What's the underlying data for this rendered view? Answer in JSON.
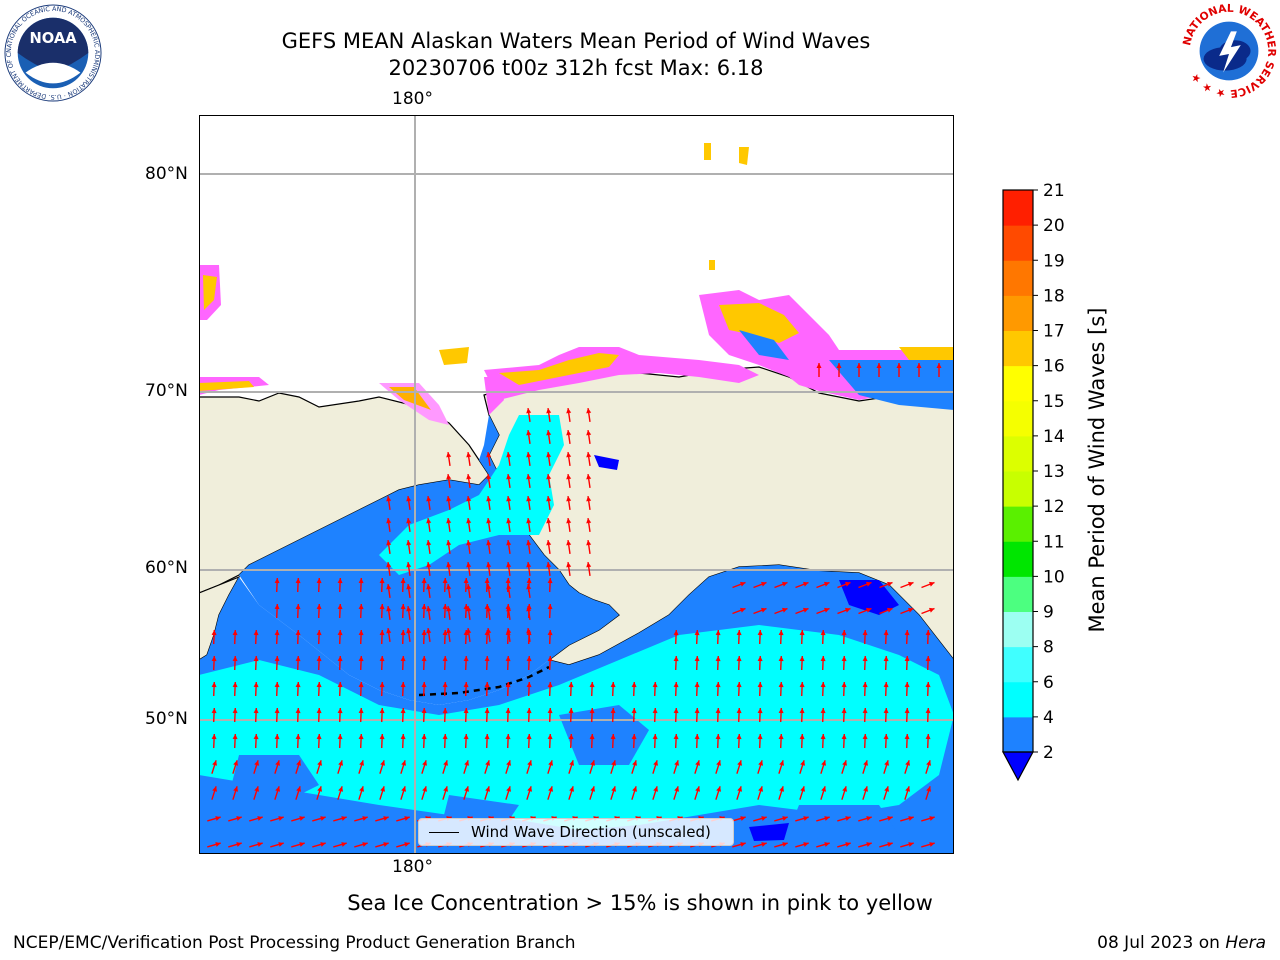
{
  "title": {
    "line1": "GEFS MEAN Alaskan Waters Mean Period of Wind Waves",
    "line2": "20230706 t00z 312h fcst   Max: 6.18"
  },
  "axes": {
    "lon_label": "180°",
    "lat_labels": [
      "80°N",
      "70°N",
      "60°N",
      "50°N"
    ]
  },
  "legend": {
    "label": "Wind Wave Direction (unscaled)"
  },
  "colorbar": {
    "label": "Mean Period of Wind Waves [s]",
    "ticks": [
      "2",
      "4",
      "6",
      "8",
      "9",
      "10",
      "11",
      "12",
      "13",
      "14",
      "15",
      "16",
      "17",
      "18",
      "19",
      "20",
      "21"
    ],
    "colors": [
      "#1e82ff",
      "#00ffff",
      "#40ffff",
      "#9cfff2",
      "#4cff80",
      "#00e600",
      "#5af000",
      "#c8ff00",
      "#dcff00",
      "#f5ff00",
      "#ffff00",
      "#ffc800",
      "#ff9900",
      "#ff7700",
      "#ff4a00",
      "#ff1f00"
    ],
    "under_color": "#0000ff"
  },
  "caption": "Sea Ice Concentration > 15% is shown in pink to yellow",
  "footer": {
    "left": "NCEP/EMC/Verification Post Processing Product Generation Branch",
    "date": "08 Jul 2023 on ",
    "host": "Hera"
  },
  "logos": {
    "noaa": "NOAA",
    "noaa_ring": "NATIONAL OCEANIC AND ATMOSPHERIC ADMINISTRATION · U.S. DEPARTMENT OF COMMERCE ·",
    "nws_ring": "NATIONAL WEATHER SERVICE ★ ★ ★"
  },
  "map_colors": {
    "land": "#f0eedb",
    "ocean_low": "#1e82ff",
    "ocean_high": "#00ffff",
    "arrow": "#ff0000",
    "grid": "#b0b0b0"
  }
}
